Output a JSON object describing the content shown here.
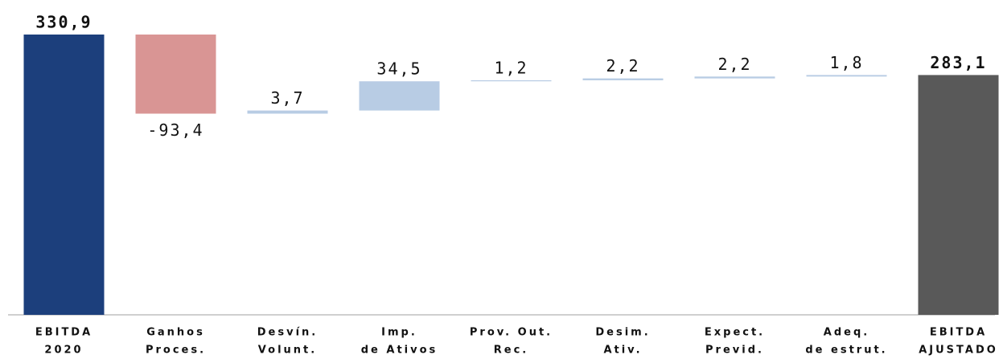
{
  "chart_data": {
    "type": "waterfall",
    "categories": [
      [
        "EBITDA",
        "2020"
      ],
      [
        "Ganhos",
        "Proces."
      ],
      [
        "Desvín.",
        "Volunt."
      ],
      [
        "Imp.",
        "de Ativos"
      ],
      [
        "Prov. Out.",
        "Rec."
      ],
      [
        "Desim.",
        "Ativ."
      ],
      [
        "Expect.",
        "Previd."
      ],
      [
        "Adeq.",
        "de estrut."
      ],
      [
        "EBITDA",
        "AJUSTADO"
      ]
    ],
    "values": [
      330.9,
      -93.4,
      3.7,
      34.5,
      1.2,
      2.2,
      2.2,
      1.8,
      283.1
    ],
    "value_labels": [
      "330,9",
      "-93,4",
      "3,7",
      "34,5",
      "1,2",
      "2,2",
      "2,2",
      "1,8",
      "283,1"
    ],
    "measure": [
      "total",
      "relative",
      "relative",
      "relative",
      "relative",
      "relative",
      "relative",
      "relative",
      "total"
    ],
    "colors": {
      "first": "#1c3f7c",
      "increase": "#b8cce4",
      "decrease": "#d99594",
      "last": "#595959"
    }
  }
}
